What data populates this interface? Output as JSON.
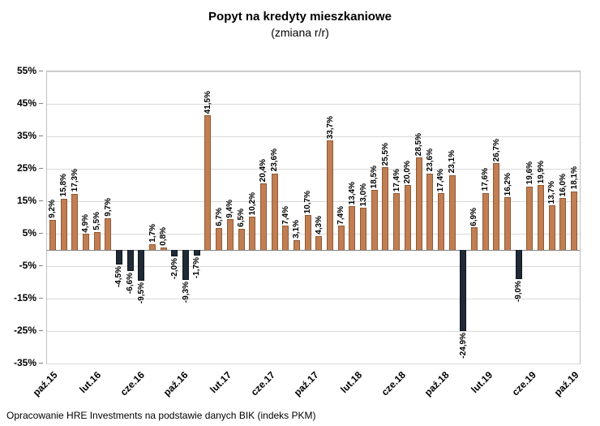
{
  "chart_data": {
    "type": "bar",
    "title": "Popyt na kredyty mieszkaniowe",
    "subtitle": "(zmiana r/r)",
    "footer": "Opracowanie HRE Investments na podstawie danych BIK (indeks PKM)",
    "ylim": [
      -35,
      55
    ],
    "grid": true,
    "ytick_labels": [
      "55%",
      "45%",
      "35%",
      "25%",
      "15%",
      "5%",
      "-5%",
      "-15%",
      "-25%",
      "-35%"
    ],
    "xtick_labels": [
      "paź.15",
      "lut.16",
      "cze.16",
      "paź.16",
      "lut.17",
      "cze.17",
      "paź.17",
      "lut.18",
      "cze.18",
      "paź.18",
      "lut.19",
      "cze.19",
      "paź.19"
    ],
    "values": [
      9.2,
      15.8,
      17.3,
      4.9,
      5.5,
      9.7,
      -4.5,
      -6.6,
      -9.5,
      1.7,
      0.8,
      -2.0,
      -9.3,
      -1.7,
      41.5,
      6.7,
      9.4,
      6.5,
      10.2,
      20.4,
      23.6,
      7.4,
      3.1,
      10.7,
      4.3,
      33.7,
      7.4,
      13.4,
      13.0,
      18.5,
      25.5,
      17.4,
      20.0,
      28.5,
      23.6,
      17.4,
      23.1,
      -24.9,
      6.9,
      17.6,
      26.7,
      16.2,
      -9.0,
      19.6,
      19.9,
      13.7,
      16.0,
      18.1
    ],
    "labels": [
      "9,2%",
      "15,8%",
      "17,3%",
      "4,9%",
      "5,5%",
      "9,7%",
      "-4,5%",
      "-6,6%",
      "-9,5%",
      "1,7%",
      "0,8%",
      "-2,0%",
      "-9,3%",
      "-1,7%",
      "41,5%",
      "6,7%",
      "9,4%",
      "6,5%",
      "10,2%",
      "20,4%",
      "23,6%",
      "7,4%",
      "3,1%",
      "10,7%",
      "4,3%",
      "33,7%",
      "7,4%",
      "13,4%",
      "13,0%",
      "18,5%",
      "25,5%",
      "17,4%",
      "20,0%",
      "28,5%",
      "23,6%",
      "17,4%",
      "23,1%",
      "-24,9%",
      "6,9%",
      "17,6%",
      "26,7%",
      "16,2%",
      "-9,0%",
      "19,6%",
      "19,9%",
      "13,7%",
      "16,0%",
      "18,1%"
    ],
    "positive_color": "#c17e52",
    "positive_border_color": "#8f5a35",
    "negative_color": "#1f2a36",
    "negative_border_color": "#10161c",
    "gridline_color": "#d9d9d9",
    "legend_position": "none"
  }
}
